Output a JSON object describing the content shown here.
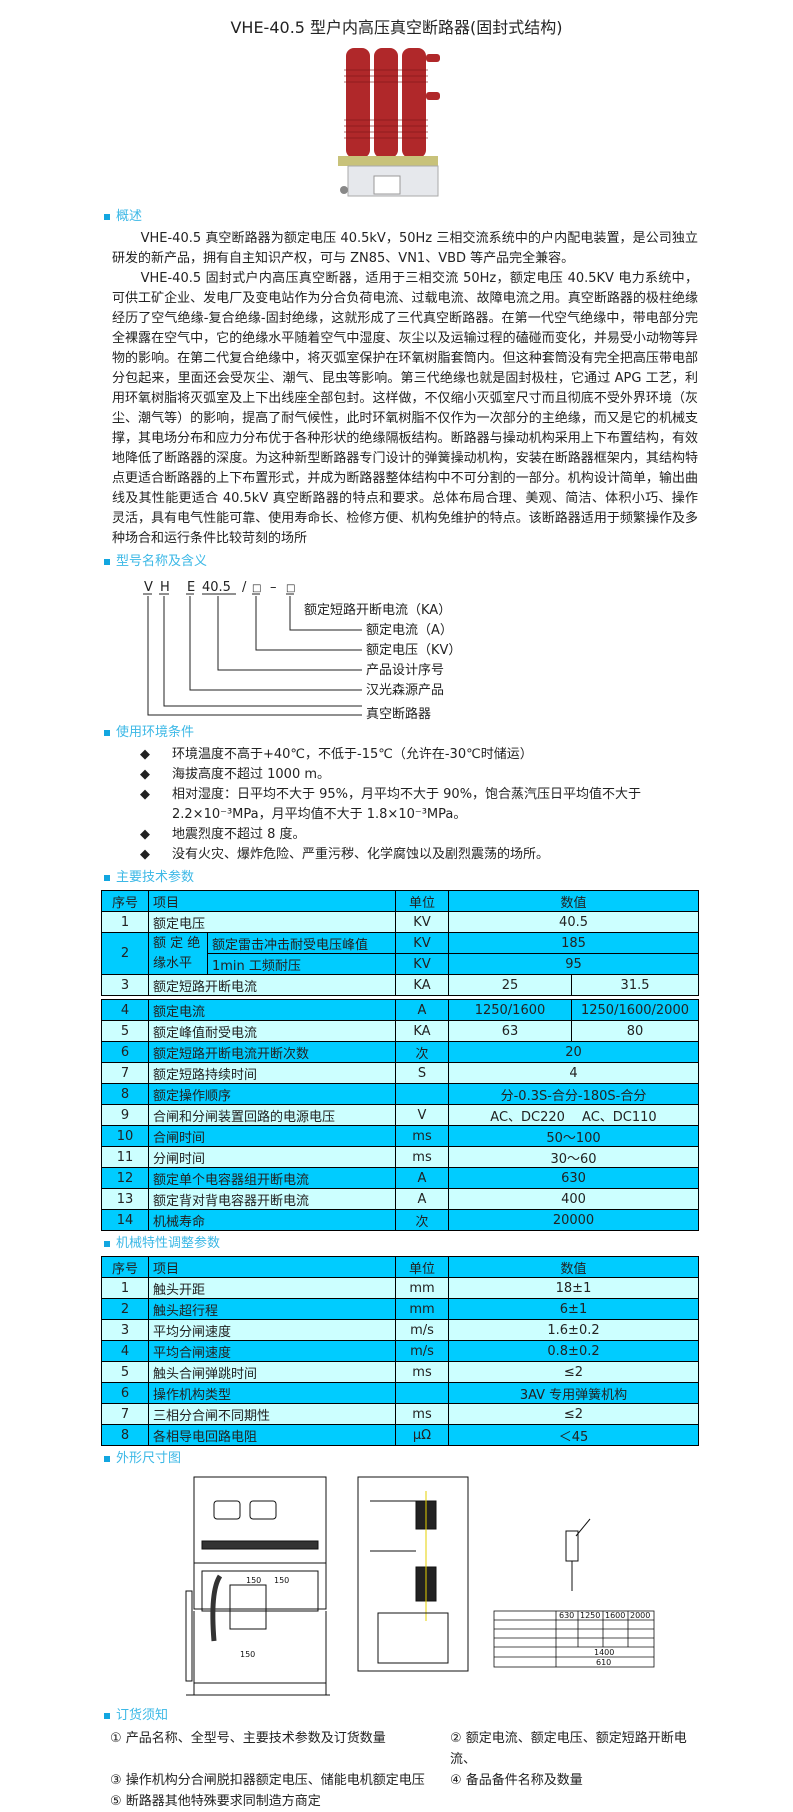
{
  "title": "VHE-40.5 型户内高压真空断路器(固封式结构)",
  "colors": {
    "heading": "#3cb8e6",
    "table_header": "#00ccff",
    "row_dark": "#00ccff",
    "row_light": "#ccffff",
    "insulator_red": "#b0282a"
  },
  "overview": {
    "heading": "概述",
    "paragraphs": [
      "VHE-40.5 真空断路器为额定电压 40.5kV，50Hz 三相交流系统中的户内配电装置，是公司独立研发的新产品，拥有自主知识产权，可与 ZN85、VN1、VBD 等产品完全兼容。",
      "VHE-40.5 固封式户内高压真空断器，适用于三相交流 50Hz，额定电压 40.5KV 电力系统中，可供工矿企业、发电厂及变电站作为分合负荷电流、过载电流、故障电流之用。真空断路器的极柱绝缘经历了空气绝缘-复合绝缘-固封绝缘，这就形成了三代真空断路器。在第一代空气绝缘中，带电部分完全裸露在空气中，它的绝缘水平随着空气中湿度、灰尘以及运输过程的磕碰而变化，并易受小动物等异物的影响。在第二代复合绝缘中，将灭弧室保护在环氧树脂套筒内。但这种套筒没有完全把高压带电部分包起来，里面还会受灰尘、潮气、昆虫等影响。第三代绝缘也就是固封极柱，它通过 APG 工艺，利用环氧树脂将灭弧室及上下出线座全部包封。这样做，不仅缩小灭弧室尺寸而且彻底不受外界环境（灰尘、潮气等）的影响，提高了耐气候性，此时环氧树脂不仅作为一次部分的主绝缘，而又是它的机械支撑，其电场分布和应力分布优于各种形状的绝缘隔板结构。断路器与操动机构采用上下布置结构，有效地降低了断路器的深度。为这种新型断路器专门设计的弹簧操动机构，安装在断路器框架内，其结构特点更适合断路器的上下布置形式，并成为断路器整体结构中不可分割的一部分。机构设计简单，输出曲线及其性能更适合 40.5kV 真空断路器的特点和要求。总体布局合理、美观、简洁、体积小巧、操作灵活，具有电气性能可靠、使用寿命长、检修方便、机构免维护的特点。该断路器适用于频繁操作及多种场合和运行条件比较苛刻的场所"
    ]
  },
  "model": {
    "heading": "型号名称及含义",
    "code": {
      "v": "V",
      "h": "H",
      "e": "E",
      "voltage": "40.5",
      "slash": "/",
      "box1": "□",
      "dash": "–",
      "box2": "□"
    },
    "labels": [
      "额定短路开断电流（KA）",
      "额定电流（A）",
      "额定电压（KV）",
      "产品设计序号",
      "汉光森源产品",
      "真空断路器"
    ]
  },
  "environment": {
    "heading": "使用环境条件",
    "items": [
      "环境温度不高于+40℃，不低于-15℃（允许在-30℃时储运）",
      "海拔高度不超过 1000 m。",
      "相对湿度：日平均不大于 95%，月平均不大于 90%，饱合蒸汽压日平均值不大于 2.2×10⁻³MPa，月平均值不大于 1.8×10⁻³MPa。",
      "地震烈度不超过 8 度。",
      "没有火灾、爆炸危险、严重污秽、化学腐蚀以及剧烈震荡的场所。"
    ]
  },
  "main_params": {
    "heading": "主要技术参数",
    "header": {
      "no": "序号",
      "item": "项目",
      "unit": "单位",
      "value": "数值"
    },
    "row1": {
      "no": "1",
      "item": "额定电压",
      "unit": "KV",
      "value": "40.5"
    },
    "row2": {
      "no": "2",
      "group": "额 定 绝 缘水平",
      "sub1": "额定雷击冲击耐受电压峰值",
      "unit1": "KV",
      "value1": "185",
      "sub2": "1min 工频耐压",
      "unit2": "KV",
      "value2": "95"
    },
    "row3": {
      "no": "3",
      "item": "额定短路开断电流",
      "unit": "KA",
      "value_a": "25",
      "value_b": "31.5"
    },
    "rows": [
      {
        "no": "4",
        "item": "额定电流",
        "unit": "A",
        "value_a": "1250/1600",
        "value_b": "1250/1600/2000"
      },
      {
        "no": "5",
        "item": "额定峰值耐受电流",
        "unit": "KA",
        "value_a": "63",
        "value_b": "80"
      },
      {
        "no": "6",
        "item": "额定短路开断电流开断次数",
        "unit": "次",
        "value": "20"
      },
      {
        "no": "7",
        "item": "额定短路持续时间",
        "unit": "S",
        "value": "4"
      },
      {
        "no": "8",
        "item": "额定操作顺序",
        "unit": "",
        "value": "分-0.3S-合分-180S-合分"
      },
      {
        "no": "9",
        "item": "合闸和分闸装置回路的电源电压",
        "unit": "V",
        "value": "AC、DC220　 AC、DC110"
      },
      {
        "no": "10",
        "item": "合闸时间",
        "unit": "ms",
        "value": "50～100"
      },
      {
        "no": "11",
        "item": "分闸时间",
        "unit": "ms",
        "value": "30～60"
      },
      {
        "no": "12",
        "item": "额定单个电容器组开断电流",
        "unit": "A",
        "value": "630"
      },
      {
        "no": "13",
        "item": "额定背对背电容器开断电流",
        "unit": "A",
        "value": "400"
      },
      {
        "no": "14",
        "item": "机械寿命",
        "unit": "次",
        "value": "20000"
      }
    ]
  },
  "mech_params": {
    "heading": "机械特性调整参数",
    "header": {
      "no": "序号",
      "item": "项目",
      "unit": "单位",
      "value": "数值"
    },
    "rows": [
      {
        "no": "1",
        "item": "触头开距",
        "unit": "mm",
        "value": "18±1"
      },
      {
        "no": "2",
        "item": "触头超行程",
        "unit": "mm",
        "value": "6±1"
      },
      {
        "no": "3",
        "item": "平均分闸速度",
        "unit": "m/s",
        "value": "1.6±0.2"
      },
      {
        "no": "4",
        "item": "平均合闸速度",
        "unit": "m/s",
        "value": "0.8±0.2"
      },
      {
        "no": "5",
        "item": "触头合闸弹跳时间",
        "unit": "ms",
        "value": "≤2"
      },
      {
        "no": "6",
        "item": "操作机构类型",
        "unit": "",
        "value": "3AV 专用弹簧机构"
      },
      {
        "no": "7",
        "item": "三相分合闸不同期性",
        "unit": "ms",
        "value": "≤2"
      },
      {
        "no": "8",
        "item": "各相导电回路电阻",
        "unit": "μΩ",
        "value": "＜45"
      }
    ]
  },
  "drawing": {
    "heading": "外形尺寸图",
    "current_values": [
      "630",
      "1250",
      "1600",
      "2000"
    ],
    "dims": [
      "1400",
      "610",
      "150",
      "150",
      "150"
    ]
  },
  "order": {
    "heading": "订货须知",
    "items": [
      "① 产品名称、全型号、主要技术参数及订货数量",
      "② 额定电流、额定电压、额定短路开断电流、",
      "③ 操作机构分合闸脱扣器额定电压、储能电机额定电压",
      "④ 备品备件名称及数量",
      "⑤ 断路器其他特殊要求同制造方商定"
    ]
  }
}
